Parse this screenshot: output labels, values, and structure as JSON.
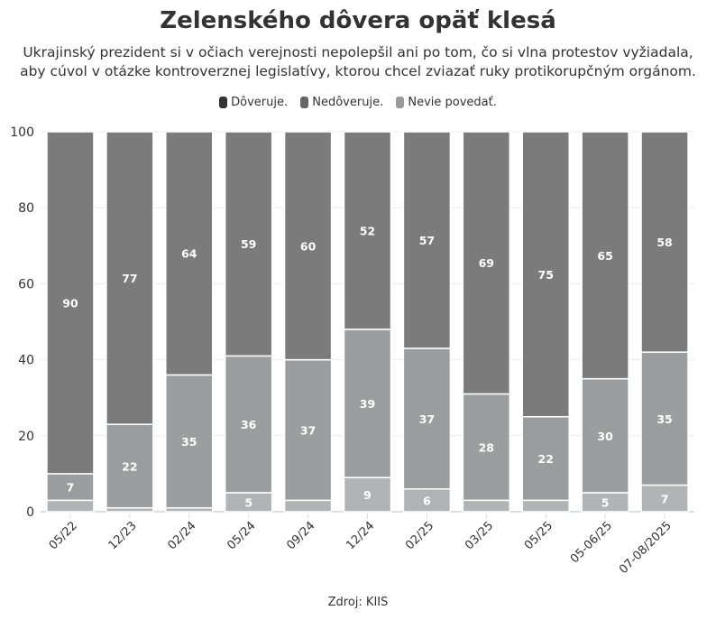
{
  "title": "Zelenského dôvera opäť klesá",
  "subtitle_line1": "Ukrajinský prezident si v očiach verejnosti nepolepšil ani po tom, čo si vlna protestov vyžiadala,",
  "subtitle_line2": "aby cúvol v otázke kontroverznej legislatívy, ktorou chcel zviazať ruky protikorupčným orgánom.",
  "source": "Zdroj: KIIS",
  "chart_data": {
    "type": "bar",
    "stacked": true,
    "categories": [
      "05/22",
      "12/23",
      "02/24",
      "05/24",
      "09/24",
      "12/24",
      "02/25",
      "03/25",
      "05/25",
      "05-06/25",
      "07-08/2025"
    ],
    "series": [
      {
        "name": "Dôveruje.",
        "legend_color": "#333333",
        "bar_color": "#7a7b7a",
        "values": [
          90,
          77,
          64,
          59,
          60,
          52,
          57,
          69,
          75,
          65,
          58
        ]
      },
      {
        "name": "Nedôveruje.",
        "legend_color": "#666666",
        "bar_color": "#9c9d9e",
        "values": [
          7,
          22,
          35,
          36,
          37,
          39,
          37,
          28,
          22,
          30,
          35
        ]
      },
      {
        "name": "Nevie povedať.",
        "legend_color": "#999999",
        "bar_color": "#b1b4b6",
        "values": [
          3,
          1,
          1,
          5,
          3,
          9,
          6,
          3,
          3,
          5,
          7
        ]
      }
    ],
    "ylim": [
      0,
      100
    ],
    "yticks": [
      0,
      20,
      40,
      60,
      80,
      100
    ],
    "grid": true,
    "legend_position": "top"
  }
}
